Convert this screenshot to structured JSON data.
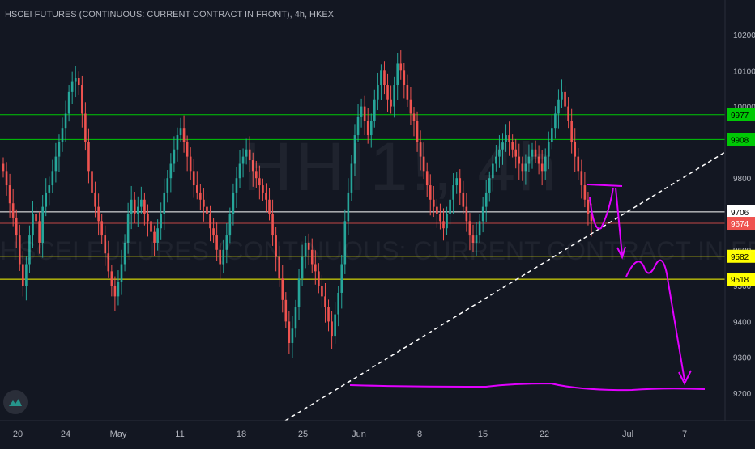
{
  "title": "HSCEI FUTURES (CONTINUOUS: CURRENT CONTRACT IN FRONT), 4h, HKEX",
  "watermark": {
    "symbol": "HHI1!, 4h",
    "description": "HSCEI FUTURES (CONTINUOUS: CURRENT CONTRACT IN FRONT)"
  },
  "icons": {
    "logo": "tradingview-logo-icon"
  },
  "colors": {
    "background": "#131722",
    "up_candle": "#26a69a",
    "down_candle": "#ef5350",
    "green_level": "#00c805",
    "yellow_level": "#ffff00",
    "white_level": "#ffffff",
    "red_level": "#ef5350",
    "trendline": "#ffffff",
    "drawing": "#e100ff"
  },
  "chart_data": {
    "type": "candlestick",
    "timeframe": "4h",
    "y_ticks": [
      9200,
      9300,
      9400,
      9500,
      9600,
      9700,
      9800,
      9900,
      10000,
      10100,
      10200
    ],
    "ylim": [
      9120,
      10260
    ],
    "x_ticks": [
      "20",
      "24",
      "May",
      "11",
      "18",
      "25",
      "Jun",
      "8",
      "15",
      "22",
      "Jul",
      "7"
    ],
    "horizontal_levels": [
      {
        "value": 9977,
        "label": "9977",
        "style": "green"
      },
      {
        "value": 9908,
        "label": "9908",
        "style": "green"
      },
      {
        "value": 9706,
        "label": "9706",
        "style": "white"
      },
      {
        "value": 9674,
        "label": "9674",
        "style": "red"
      },
      {
        "value": 9582,
        "label": "9582",
        "style": "yellow"
      },
      {
        "value": 9518,
        "label": "9518",
        "style": "yellow"
      }
    ],
    "trendline": {
      "style": "dashed",
      "from": {
        "x": "25",
        "y": 9100
      },
      "to": {
        "x": "Jul",
        "y": 9890
      }
    },
    "candles_close": [
      9820,
      9780,
      9730,
      9690,
      9640,
      9560,
      9500,
      9560,
      9640,
      9700,
      9680,
      9620,
      9720,
      9760,
      9780,
      9820,
      9860,
      9900,
      9940,
      9980,
      10040,
      10070,
      10080,
      10060,
      9980,
      9900,
      9820,
      9760,
      9720,
      9680,
      9640,
      9590,
      9540,
      9500,
      9470,
      9510,
      9560,
      9620,
      9700,
      9740,
      9700,
      9720,
      9740,
      9700,
      9680,
      9650,
      9620,
      9660,
      9700,
      9760,
      9800,
      9840,
      9880,
      9920,
      9940,
      9900,
      9860,
      9820,
      9780,
      9760,
      9740,
      9720,
      9700,
      9660,
      9640,
      9600,
      9560,
      9600,
      9640,
      9700,
      9760,
      9800,
      9840,
      9860,
      9880,
      9850,
      9820,
      9800,
      9780,
      9760,
      9740,
      9700,
      9640,
      9580,
      9520,
      9460,
      9400,
      9340,
      9380,
      9440,
      9520,
      9580,
      9620,
      9600,
      9560,
      9540,
      9500,
      9470,
      9440,
      9400,
      9360,
      9420,
      9480,
      9560,
      9680,
      9760,
      9840,
      9920,
      9970,
      10000,
      9960,
      9920,
      9960,
      10020,
      10060,
      10100,
      10060,
      10020,
      10000,
      10060,
      10120,
      10100,
      10060,
      10020,
      9980,
      9960,
      9900,
      9860,
      9820,
      9780,
      9740,
      9720,
      9700,
      9680,
      9660,
      9700,
      9740,
      9780,
      9800,
      9760,
      9720,
      9680,
      9640,
      9620,
      9640,
      9680,
      9720,
      9760,
      9800,
      9840,
      9860,
      9880,
      9900,
      9920,
      9900,
      9880,
      9860,
      9840,
      9820,
      9840,
      9860,
      9880,
      9860,
      9840,
      9820,
      9860,
      9900,
      9940,
      9980,
      10020,
      10040,
      10000,
      9960,
      9900,
      9860,
      9820,
      9780,
      9740,
      9700,
      9680
    ],
    "projection_drawing": {
      "description_points": [
        {
          "label": "peak",
          "value": 9780
        },
        {
          "label": "down-arrow-1",
          "value": 9585
        },
        {
          "label": "bounce",
          "value": 9570
        },
        {
          "label": "down-arrow-2",
          "value": 9210
        },
        {
          "label": "support",
          "value": 9210
        }
      ]
    }
  }
}
